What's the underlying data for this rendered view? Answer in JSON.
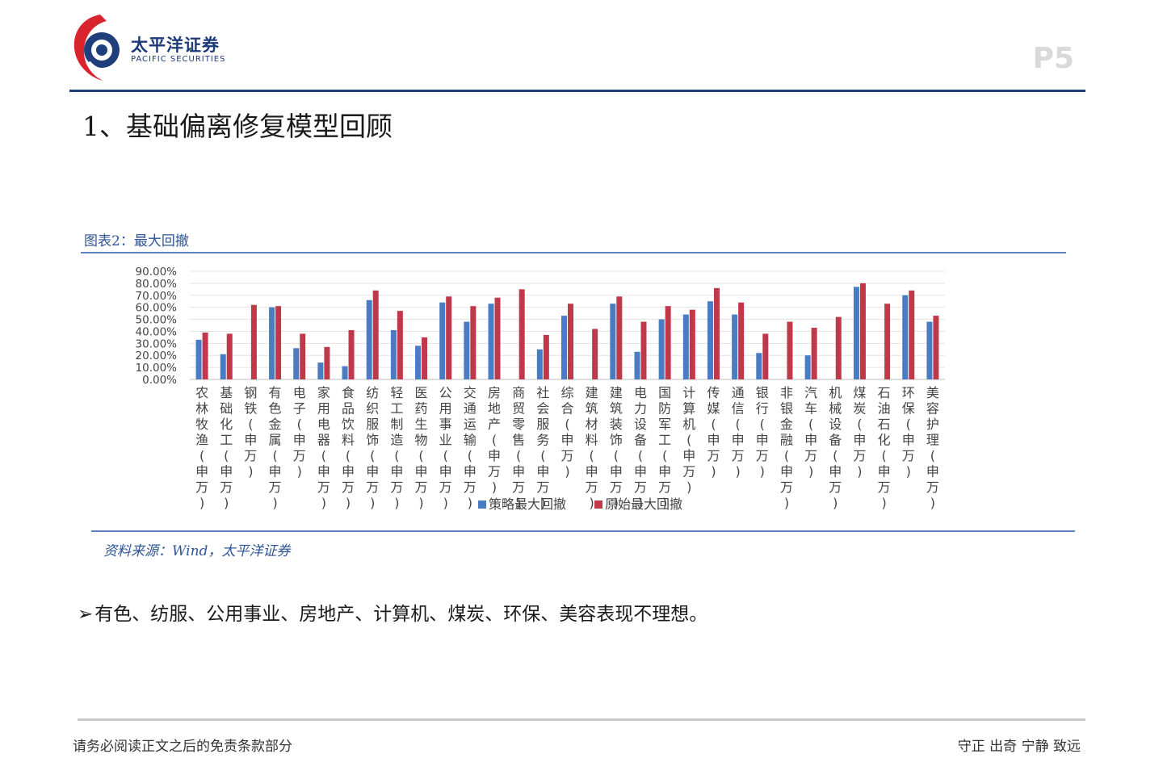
{
  "header": {
    "logo_cn": "太平洋证券",
    "logo_en": "PACIFIC SECURITIES",
    "page_number": "P5"
  },
  "slide": {
    "title": "1、基础偏离修复模型回顾",
    "figure_title": "图表2：最大回撤",
    "source": "资料来源：Wind，太平洋证券",
    "bullet": "有色、纺服、公用事业、房地产、计算机、煤炭、环保、美容表现不理想。"
  },
  "footer": {
    "disclaimer": "请务必阅读正文之后的免责条款部分",
    "motto": "守正 出奇 宁静 致远"
  },
  "colors": {
    "strategy": "#4a7cc4",
    "original": "#c0394a",
    "brand_blue": "#1f3e7c",
    "brand_red": "#d9232d"
  },
  "chart_data": {
    "type": "bar",
    "title": "",
    "xlabel": "",
    "ylabel": "",
    "ylim": [
      0,
      90
    ],
    "yticks": [
      "90.00%",
      "80.00%",
      "70.00%",
      "60.00%",
      "50.00%",
      "40.00%",
      "30.00%",
      "20.00%",
      "10.00%",
      "0.00%"
    ],
    "legend_position": "bottom",
    "categories": [
      "农林牧渔(申万)",
      "基础化工(申万)",
      "钢铁(申万)",
      "有色金属(申万)",
      "电子(申万)",
      "家用电器(申万)",
      "食品饮料(申万)",
      "纺织服饰(申万)",
      "轻工制造(申万)",
      "医药生物(申万)",
      "公用事业(申万)",
      "交通运输(申万)",
      "房地产(申万)",
      "商贸零售(申万)",
      "社会服务(申万)",
      "综合(申万)",
      "建筑材料(申万)",
      "建筑装饰(申万)",
      "电力设备(申万)",
      "国防军工(申万)",
      "计算机(申万)",
      "传媒(申万)",
      "通信(申万)",
      "银行(申万)",
      "非银金融(申万)",
      "汽车(申万)",
      "机械设备(申万)",
      "煤炭(申万)",
      "石油石化(申万)",
      "环保(申万)",
      "美容护理(申万)"
    ],
    "series": [
      {
        "name": "策略最大回撤",
        "values": [
          33,
          21,
          0,
          60,
          26,
          14,
          11,
          66,
          41,
          28,
          64,
          48,
          63,
          0,
          25,
          53,
          0,
          63,
          23,
          50,
          54,
          65,
          54,
          22,
          0,
          20,
          0,
          77,
          0,
          70,
          48
        ]
      },
      {
        "name": "原始最大回撤",
        "values": [
          39,
          38,
          62,
          61,
          38,
          27,
          41,
          74,
          57,
          35,
          69,
          61,
          68,
          75,
          37,
          63,
          42,
          69,
          48,
          61,
          58,
          76,
          64,
          38,
          48,
          43,
          52,
          80,
          63,
          74,
          53
        ]
      }
    ]
  }
}
